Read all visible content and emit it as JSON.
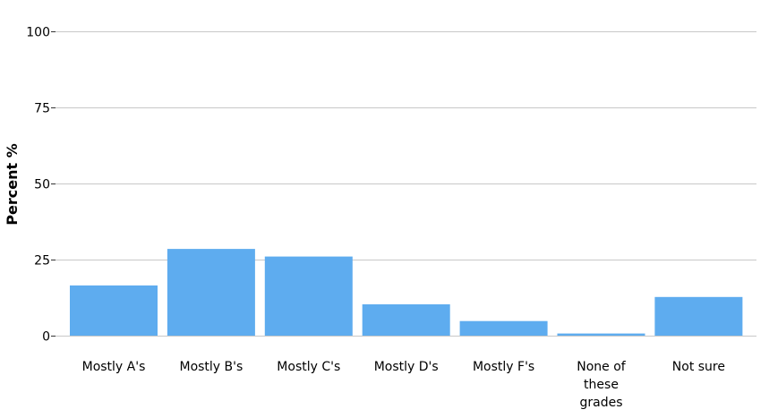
{
  "chart_data": {
    "type": "bar",
    "categories": [
      "Mostly A's",
      "Mostly B's",
      "Mostly C's",
      "Mostly D's",
      "Mostly F's",
      "None of these grades",
      "Not sure"
    ],
    "category_label_lines": [
      [
        "Mostly A's"
      ],
      [
        "Mostly B's"
      ],
      [
        "Mostly C's"
      ],
      [
        "Mostly D's"
      ],
      [
        "Mostly F's"
      ],
      [
        "None of",
        "these",
        "grades"
      ],
      [
        "Not sure"
      ]
    ],
    "values": [
      16.5,
      28.5,
      26,
      10.3,
      4.8,
      0.7,
      12.7
    ],
    "ylabel": "Percent %",
    "xlabel": "",
    "ylim": [
      0,
      100
    ],
    "yticks": [
      0,
      25,
      50,
      75,
      100
    ],
    "grid": true,
    "colors": {
      "bar": "#5eacef"
    }
  }
}
